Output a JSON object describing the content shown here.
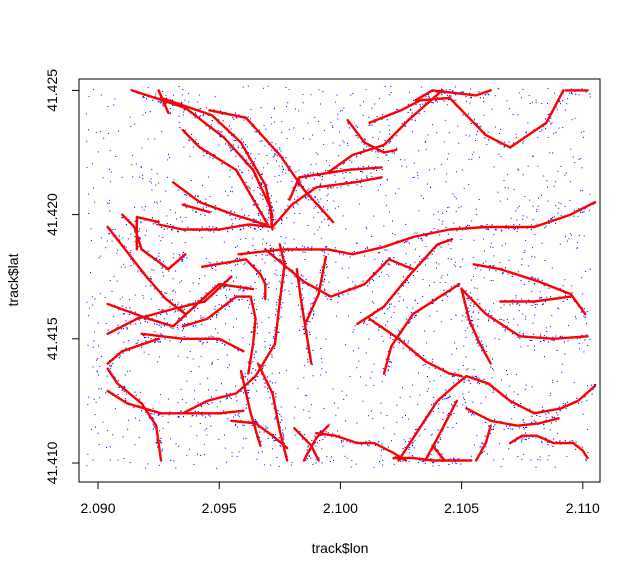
{
  "chart_data": {
    "type": "scatter",
    "title": "",
    "xlabel": "track$lon",
    "ylabel": "track$lat",
    "xlim": [
      2.089,
      2.1105
    ],
    "ylim": [
      41.4095,
      41.4255
    ],
    "x_ticks": [
      "2.090",
      "2.095",
      "2.100",
      "2.105",
      "2.110"
    ],
    "y_ticks": [
      "41.410",
      "41.415",
      "41.420",
      "41.425"
    ],
    "colors": {
      "points": "#0000ff",
      "lines": "#ff0000",
      "frame": "#000000"
    },
    "series": [
      {
        "color": "#ff0000",
        "lines": [
          [
            [
              2.0914,
              41.425
            ],
            [
              2.0936,
              41.4243
            ],
            [
              2.0952,
              41.4231
            ],
            [
              2.0964,
              41.4218
            ],
            [
              2.0971,
              41.4203
            ],
            [
              2.0972,
              41.4194
            ]
          ],
          [
            [
              2.0926,
              41.4247
            ],
            [
              2.0947,
              41.424
            ],
            [
              2.0959,
              41.4229
            ],
            [
              2.0969,
              41.4212
            ],
            [
              2.0972,
              41.4199
            ]
          ],
          [
            [
              2.0946,
              41.4242
            ],
            [
              2.0961,
              41.4239
            ],
            [
              2.0975,
              41.4224
            ],
            [
              2.0985,
              41.421
            ],
            [
              2.0997,
              41.4197
            ]
          ],
          [
            [
              2.0935,
              41.4234
            ],
            [
              2.0942,
              41.4227
            ],
            [
              2.0957,
              41.4218
            ],
            [
              2.097,
              41.4196
            ]
          ],
          [
            [
              2.0931,
              41.4213
            ],
            [
              2.0942,
              41.4205
            ],
            [
              2.0956,
              41.42
            ],
            [
              2.0969,
              41.4196
            ]
          ],
          [
            [
              2.0935,
              41.4204
            ],
            [
              2.0946,
              41.4201
            ]
          ],
          [
            [
              2.0972,
              41.4195
            ],
            [
              2.098,
              41.4204
            ],
            [
              2.099,
              41.4211
            ],
            [
              2.1006,
              41.4213
            ],
            [
              2.1017,
              41.4215
            ]
          ],
          [
            [
              2.0979,
              41.4206
            ],
            [
              2.0983,
              41.4215
            ],
            [
              2.1003,
              41.4218
            ],
            [
              2.1017,
              41.4219
            ]
          ],
          [
            [
              2.0995,
              41.4217
            ],
            [
              2.1005,
              41.4224
            ],
            [
              2.1018,
              41.4228
            ],
            [
              2.1028,
              41.4238
            ],
            [
              2.1042,
              41.425
            ]
          ],
          [
            [
              2.1012,
              41.4237
            ],
            [
              2.1025,
              41.4242
            ],
            [
              2.1033,
              41.4246
            ],
            [
              2.1045,
              41.4247
            ],
            [
              2.1052,
              41.424
            ],
            [
              2.106,
              41.4232
            ],
            [
              2.107,
              41.4227
            ],
            [
              2.1085,
              41.4237
            ],
            [
              2.1092,
              41.425
            ]
          ],
          [
            [
              2.1031,
              41.4246
            ],
            [
              2.1038,
              41.425
            ],
            [
              2.1056,
              41.4248
            ],
            [
              2.1062,
              41.425
            ]
          ],
          [
            [
              2.1003,
              41.4238
            ],
            [
              2.101,
              41.4229
            ],
            [
              2.1018,
              41.4225
            ],
            [
              2.1023,
              41.4226
            ]
          ],
          [
            [
              2.1093,
              41.425
            ],
            [
              2.1102,
              41.425
            ]
          ],
          [
            [
              2.0925,
              41.4196
            ],
            [
              2.0935,
              41.4194
            ],
            [
              2.095,
              41.4194
            ],
            [
              2.0962,
              41.4196
            ],
            [
              2.0972,
              41.4195
            ]
          ],
          [
            [
              2.0916,
              41.4186
            ],
            [
              2.0916,
              41.4199
            ],
            [
              2.0925,
              41.4197
            ]
          ],
          [
            [
              2.0958,
              41.4184
            ],
            [
              2.0976,
              41.4186
            ],
            [
              2.0995,
              41.4186
            ],
            [
              2.1005,
              41.4184
            ],
            [
              2.1018,
              41.4187
            ],
            [
              2.103,
              41.4191
            ],
            [
              2.1045,
              41.4194
            ],
            [
              2.106,
              41.4195
            ],
            [
              2.108,
              41.4195
            ],
            [
              2.1095,
              41.42
            ],
            [
              2.1105,
              41.4205
            ]
          ],
          [
            [
              2.0943,
              41.4179
            ],
            [
              2.0961,
              41.4182
            ],
            [
              2.0967,
              41.4176
            ],
            [
              2.0969,
              41.4172
            ],
            [
              2.0969,
              41.4166
            ]
          ],
          [
            [
              2.0935,
              41.4155
            ],
            [
              2.0945,
              41.4158
            ],
            [
              2.0957,
              41.4167
            ],
            [
              2.0963,
              41.4167
            ],
            [
              2.0965,
              41.4158
            ],
            [
              2.0964,
              41.4148
            ],
            [
              2.0962,
              41.4136
            ]
          ],
          [
            [
              2.0918,
              41.4152
            ],
            [
              2.0935,
              41.415
            ],
            [
              2.095,
              41.415
            ],
            [
              2.096,
              41.4145
            ]
          ],
          [
            [
              2.0904,
              41.414
            ],
            [
              2.091,
              41.4145
            ],
            [
              2.0925,
              41.415
            ]
          ],
          [
            [
              2.0904,
              41.4152
            ],
            [
              2.0916,
              41.4158
            ],
            [
              2.0931,
              41.4162
            ],
            [
              2.0944,
              41.4165
            ],
            [
              2.0955,
              41.4175
            ]
          ],
          [
            [
              2.0904,
              41.4164
            ],
            [
              2.0921,
              41.4158
            ],
            [
              2.0931,
              41.4155
            ],
            [
              2.0942,
              41.4165
            ],
            [
              2.095,
              41.4172
            ],
            [
              2.0964,
              41.417
            ]
          ],
          [
            [
              2.0935,
              41.412
            ],
            [
              2.0945,
              41.4125
            ],
            [
              2.0957,
              41.4128
            ],
            [
              2.0965,
              41.4135
            ],
            [
              2.0973,
              41.4148
            ],
            [
              2.0975,
              41.4165
            ],
            [
              2.0977,
              41.418
            ],
            [
              2.0975,
              41.4188
            ]
          ],
          [
            [
              2.0969,
              41.4186
            ],
            [
              2.0985,
              41.4173
            ],
            [
              2.0996,
              41.4167
            ],
            [
              2.101,
              41.4172
            ],
            [
              2.102,
              41.4182
            ],
            [
              2.103,
              41.4178
            ]
          ],
          [
            [
              2.0986,
              41.4157
            ],
            [
              2.0991,
              41.4168
            ],
            [
              2.0994,
              41.4183
            ]
          ],
          [
            [
              2.0982,
              41.4178
            ],
            [
              2.0984,
              41.4164
            ],
            [
              2.0986,
              41.4152
            ],
            [
              2.0988,
              41.414
            ]
          ],
          [
            [
              2.1012,
              41.4158
            ],
            [
              2.1024,
              41.415
            ],
            [
              2.1035,
              41.4141
            ],
            [
              2.1045,
              41.4136
            ],
            [
              2.105,
              41.4135
            ]
          ],
          [
            [
              2.1007,
              41.4156
            ],
            [
              2.1018,
              41.4163
            ],
            [
              2.1028,
              41.4175
            ],
            [
              2.104,
              41.4188
            ],
            [
              2.1046,
              41.419
            ]
          ],
          [
            [
              2.1055,
              41.418
            ],
            [
              2.1066,
              41.4178
            ],
            [
              2.1082,
              41.4173
            ],
            [
              2.1095,
              41.4168
            ],
            [
              2.1101,
              41.416
            ]
          ],
          [
            [
              2.105,
              41.417
            ],
            [
              2.106,
              41.416
            ],
            [
              2.1074,
              41.4151
            ],
            [
              2.1088,
              41.415
            ],
            [
              2.1102,
              41.4151
            ]
          ],
          [
            [
              2.105,
              41.417
            ],
            [
              2.1053,
              41.4158
            ],
            [
              2.1057,
              41.4149
            ],
            [
              2.1062,
              41.414
            ]
          ],
          [
            [
              2.1049,
              41.4172
            ],
            [
              2.103,
              41.416
            ],
            [
              2.1021,
              41.4147
            ],
            [
              2.1018,
              41.4136
            ]
          ],
          [
            [
              2.1024,
              41.4101
            ],
            [
              2.1032,
              41.4113
            ],
            [
              2.104,
              41.4125
            ],
            [
              2.1047,
              41.4131
            ],
            [
              2.1052,
              41.4135
            ],
            [
              2.1061,
              41.4132
            ],
            [
              2.107,
              41.4125
            ],
            [
              2.108,
              41.412
            ],
            [
              2.1091,
              41.4122
            ],
            [
              2.1098,
              41.4125
            ],
            [
              2.1105,
              41.4131
            ]
          ],
          [
            [
              2.1052,
              41.4122
            ],
            [
              2.1062,
              41.4117
            ],
            [
              2.1073,
              41.4115
            ],
            [
              2.1082,
              41.4116
            ],
            [
              2.109,
              41.4118
            ]
          ],
          [
            [
              2.1056,
              41.4101
            ],
            [
              2.106,
              41.4108
            ],
            [
              2.1062,
              41.4115
            ]
          ],
          [
            [
              2.107,
              41.4108
            ],
            [
              2.1075,
              41.4111
            ],
            [
              2.1081,
              41.4111
            ],
            [
              2.1088,
              41.4108
            ],
            [
              2.1096,
              41.4108
            ],
            [
              2.11,
              41.4105
            ],
            [
              2.1102,
              41.4102
            ]
          ],
          [
            [
              2.1048,
              41.4125
            ],
            [
              2.104,
              41.411
            ],
            [
              2.1035,
              41.4101
            ]
          ],
          [
            [
              2.099,
              41.4112
            ],
            [
              2.0998,
              41.4111
            ],
            [
              2.1007,
              41.4108
            ],
            [
              2.1014,
              41.4108
            ],
            [
              2.1022,
              41.4104
            ],
            [
              2.1027,
              41.4101
            ]
          ],
          [
            [
              2.1022,
              41.4102
            ],
            [
              2.103,
              41.4102
            ],
            [
              2.1038,
              41.4101
            ],
            [
              2.1045,
              41.4101
            ],
            [
              2.1054,
              41.4101
            ]
          ],
          [
            [
              2.0995,
              41.4115
            ],
            [
              2.099,
              41.411
            ],
            [
              2.0986,
              41.4103
            ],
            [
              2.0985,
              41.4101
            ]
          ],
          [
            [
              2.0981,
              41.4114
            ],
            [
              2.0988,
              41.4107
            ],
            [
              2.0991,
              41.4101
            ]
          ],
          [
            [
              2.0904,
              41.4138
            ],
            [
              2.0908,
              41.4132
            ],
            [
              2.0918,
              41.4124
            ],
            [
              2.0924,
              41.4115
            ],
            [
              2.0926,
              41.4101
            ]
          ],
          [
            [
              2.0904,
              41.4129
            ],
            [
              2.0912,
              41.4124
            ],
            [
              2.0926,
              41.412
            ],
            [
              2.094,
              41.412
            ],
            [
              2.095,
              41.412
            ],
            [
              2.096,
              41.4121
            ]
          ],
          [
            [
              2.0955,
              41.4117
            ],
            [
              2.0965,
              41.4116
            ],
            [
              2.0972,
              41.4111
            ],
            [
              2.0978,
              41.4106
            ]
          ],
          [
            [
              2.1038,
              41.4107
            ],
            [
              2.1043,
              41.4101
            ]
          ],
          [
            [
              2.0904,
              41.4195
            ],
            [
              2.0912,
              41.4185
            ],
            [
              2.092,
              41.4175
            ],
            [
              2.0928,
              41.4166
            ],
            [
              2.0936,
              41.416
            ]
          ],
          [
            [
              2.0959,
              41.4137
            ],
            [
              2.0963,
              41.412
            ],
            [
              2.0967,
              41.4107
            ]
          ],
          [
            [
              2.0966,
              41.414
            ],
            [
              2.0972,
              41.4128
            ],
            [
              2.0975,
              41.4113
            ],
            [
              2.0978,
              41.4101
            ]
          ],
          [
            [
              2.091,
              41.42
            ],
            [
              2.0915,
              41.4195
            ],
            [
              2.0918,
              41.4186
            ],
            [
              2.0925,
              41.4181
            ],
            [
              2.0929,
              41.4178
            ],
            [
              2.0936,
              41.4184
            ]
          ],
          [
            [
              2.1066,
              41.4165
            ],
            [
              2.108,
              41.4165
            ],
            [
              2.1095,
              41.4167
            ]
          ],
          [
            [
              2.0925,
              41.425
            ],
            [
              2.0929,
              41.4241
            ]
          ]
        ]
      }
    ]
  }
}
